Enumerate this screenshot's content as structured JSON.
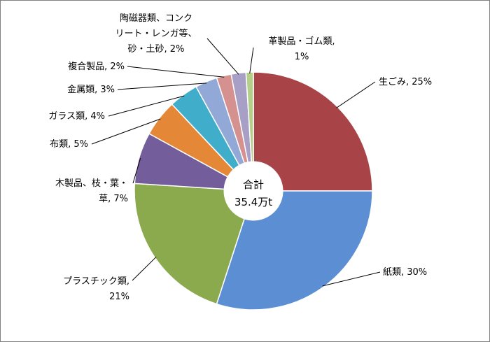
{
  "chart_data": {
    "type": "pie",
    "style": "donut",
    "center_label": {
      "line1": "合計",
      "line2": "35.4万t"
    },
    "categories": [
      "生ごみ",
      "紙類",
      "プラスチック類",
      "木製品、枝・葉・草",
      "布類",
      "ガラス類",
      "金属類",
      "複合製品",
      "陶磁器類、コンクリート・レンガ等、砂・土砂",
      "革製品・ゴム類"
    ],
    "values": [
      25,
      30,
      21,
      7,
      5,
      4,
      3,
      2,
      2,
      1
    ],
    "colors": [
      "#A84447",
      "#5B8ED3",
      "#8BAA4E",
      "#735D9A",
      "#E48837",
      "#40AECB",
      "#92A9D8",
      "#D5918F",
      "#A89FC6",
      "#B4CF8A"
    ],
    "labels": [
      {
        "lines": [
          "生ごみ, 25%"
        ]
      },
      {
        "lines": [
          "紙類, 30%"
        ]
      },
      {
        "lines": [
          "プラスチック類,",
          "21%"
        ]
      },
      {
        "lines": [
          "木製品、枝・葉・",
          "草, 7%"
        ]
      },
      {
        "lines": [
          "布類, 5%"
        ]
      },
      {
        "lines": [
          "ガラス類, 4%"
        ]
      },
      {
        "lines": [
          "金属類, 3%"
        ]
      },
      {
        "lines": [
          "複合製品, 2%"
        ]
      },
      {
        "lines": [
          "陶磁器類、コンク",
          "リート・レンガ等、",
          "砂・土砂, 2%"
        ]
      },
      {
        "lines": [
          "革製品・ゴム類,",
          "1%"
        ]
      }
    ]
  }
}
